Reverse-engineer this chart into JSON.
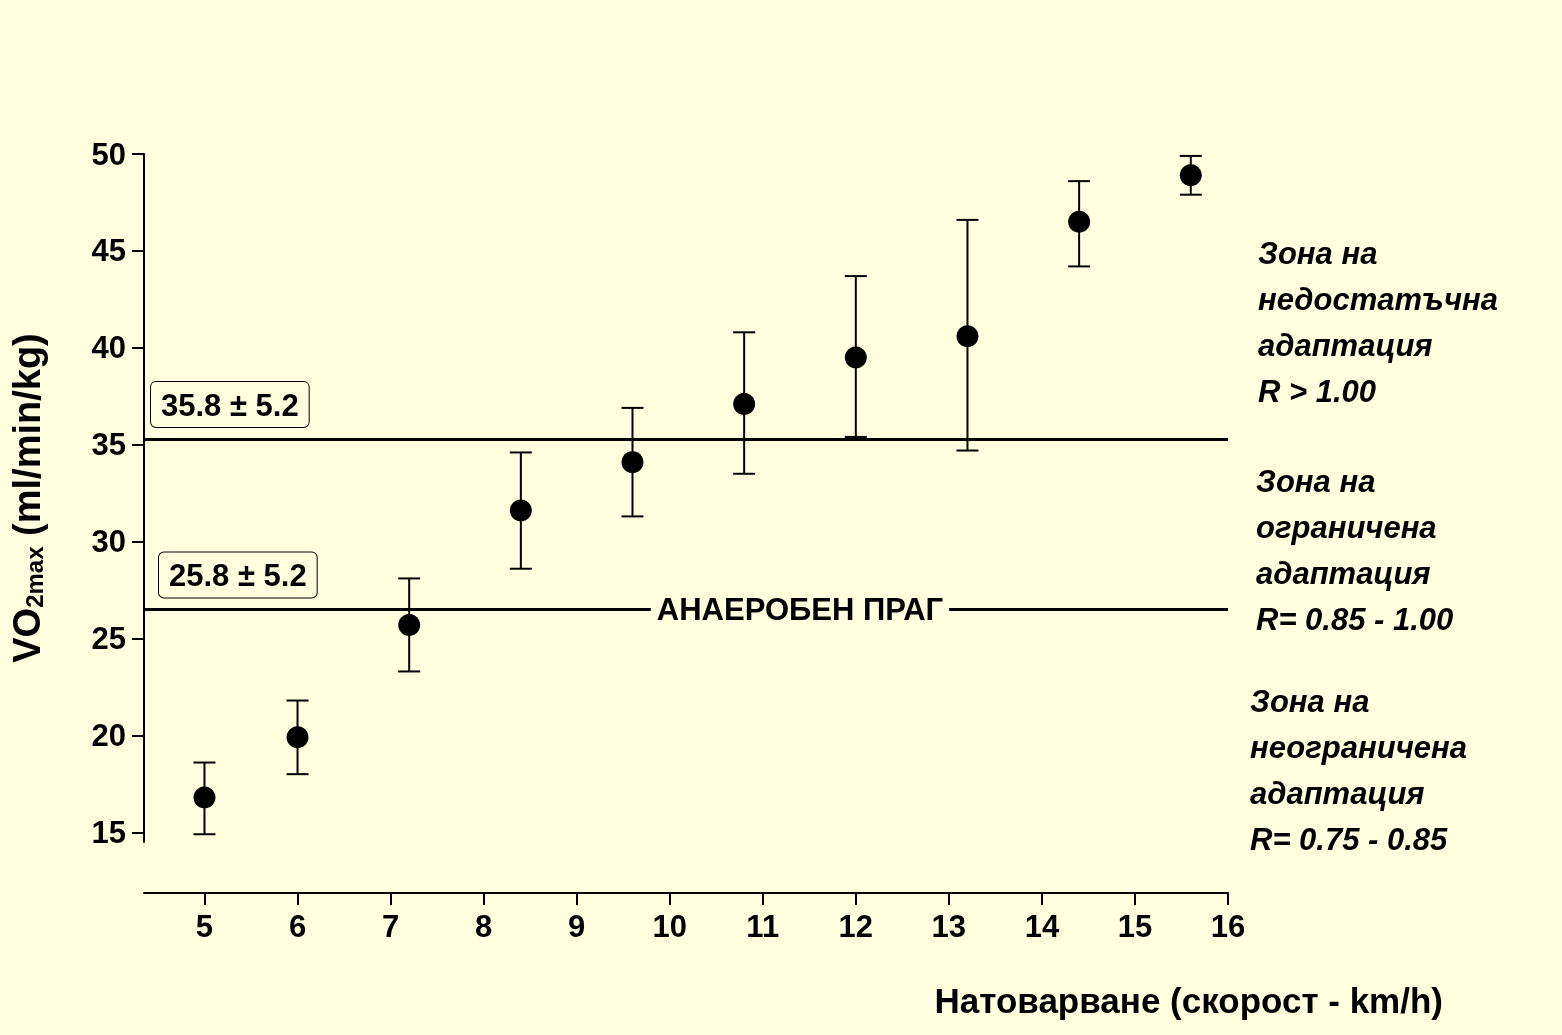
{
  "chart_data": {
    "type": "scatter",
    "xlabel": "Натоварване (скорост - km/h)",
    "ylabel": "VO$_{2max}$ (ml/min/kg)",
    "x": [
      5,
      6,
      7.2,
      8.4,
      9.6,
      10.8,
      12,
      13.2,
      14.4,
      15.6
    ],
    "series": [
      {
        "color": "#000000",
        "values": [
          16.8,
          19.9,
          25.7,
          31.6,
          34.1,
          37.1,
          39.5,
          40.6,
          46.5,
          48.9
        ],
        "errors": [
          [
            14.9,
            18.6
          ],
          [
            18.0,
            21.8
          ],
          [
            23.3,
            28.1
          ],
          [
            28.6,
            34.6
          ],
          [
            31.3,
            36.9
          ],
          [
            33.5,
            40.8
          ],
          [
            35.4,
            43.7
          ],
          [
            34.7,
            46.6
          ],
          [
            44.2,
            48.6
          ],
          [
            47.9,
            49.9
          ]
        ]
      }
    ],
    "marker": "circle",
    "xlim": [
      4.35,
      16
    ],
    "xticks": [
      5,
      6,
      7,
      8,
      9,
      10,
      11,
      12,
      13,
      14,
      15,
      16
    ],
    "ylim": [
      14.5,
      50
    ],
    "yticks": [
      15,
      20,
      25,
      30,
      35,
      40,
      45,
      50
    ],
    "grid": false,
    "ref_lines": [
      {
        "axis": "y",
        "value": 35.3,
        "color": "#000000"
      },
      {
        "axis": "y",
        "value": 26.5,
        "color": "#000000"
      }
    ],
    "annotations": [
      "35.8 ± 5.2",
      "25.8 ± 5.2",
      {
        "text": "АНАЕРОБЕН ПРАГ",
        "x": 11.4,
        "y": 26.5
      },
      "Зона на\nнедостатъчна\nадаптация\nR > 1.00",
      "Зона на\nограничена\nадаптация\nR= 0.85 - 1.00",
      "Зона на\nнеограничена\nадаптация\nR= 0.75 - 0.85"
    ]
  }
}
